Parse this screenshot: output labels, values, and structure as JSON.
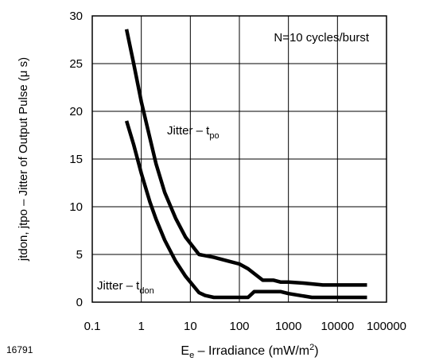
{
  "chart_data": {
    "type": "line",
    "title": "",
    "xlabel": {
      "base": "E",
      "sub": "e",
      "mid": " – Irradiance (mW/m",
      "sup": "2",
      "end": ")"
    },
    "ylabel": "jtdon, jtpo – Jitter of Output Pulse (μ s)",
    "xscale": "log",
    "xlim": [
      0.1,
      100000
    ],
    "ylim": [
      0,
      30
    ],
    "xticks": [
      0.1,
      1,
      10,
      100,
      1000,
      10000,
      100000
    ],
    "xtick_labels": [
      "0.1",
      "1",
      "10",
      "100",
      "1000",
      "10000",
      "100000"
    ],
    "yticks": [
      0,
      5,
      10,
      15,
      20,
      25,
      30
    ],
    "ytick_labels": [
      "0",
      "5",
      "10",
      "15",
      "20",
      "25",
      "30"
    ],
    "grid": true,
    "annotation": "N=10 cycles/burst",
    "figure_id": "16791",
    "series": [
      {
        "name": "Jitter – tpo",
        "label": {
          "base": "Jitter – t",
          "sub": "po"
        },
        "x": [
          0.5,
          0.7,
          1,
          1.5,
          2,
          3,
          5,
          8,
          15,
          30,
          60,
          100,
          150,
          200,
          300,
          500,
          700,
          1000,
          2000,
          5000,
          10000,
          40000
        ],
        "y": [
          28.6,
          25,
          21,
          17.2,
          14.5,
          11.5,
          8.8,
          6.8,
          5,
          4.7,
          4.3,
          4,
          3.5,
          3,
          2.3,
          2.3,
          2.1,
          2.1,
          2,
          1.8,
          1.8,
          1.8
        ]
      },
      {
        "name": "Jitter – tdon",
        "label": {
          "base": "Jitter – t",
          "sub": "don"
        },
        "x": [
          0.5,
          0.7,
          1,
          1.5,
          2,
          3,
          5,
          8,
          15,
          20,
          30,
          50,
          100,
          150,
          200,
          500,
          700,
          1000,
          3000,
          10000,
          40000
        ],
        "y": [
          19,
          16.5,
          13.5,
          10.5,
          8.7,
          6.5,
          4.3,
          2.7,
          1,
          0.7,
          0.5,
          0.5,
          0.5,
          0.5,
          1.1,
          1.1,
          1.1,
          0.9,
          0.5,
          0.5,
          0.5
        ]
      }
    ]
  }
}
